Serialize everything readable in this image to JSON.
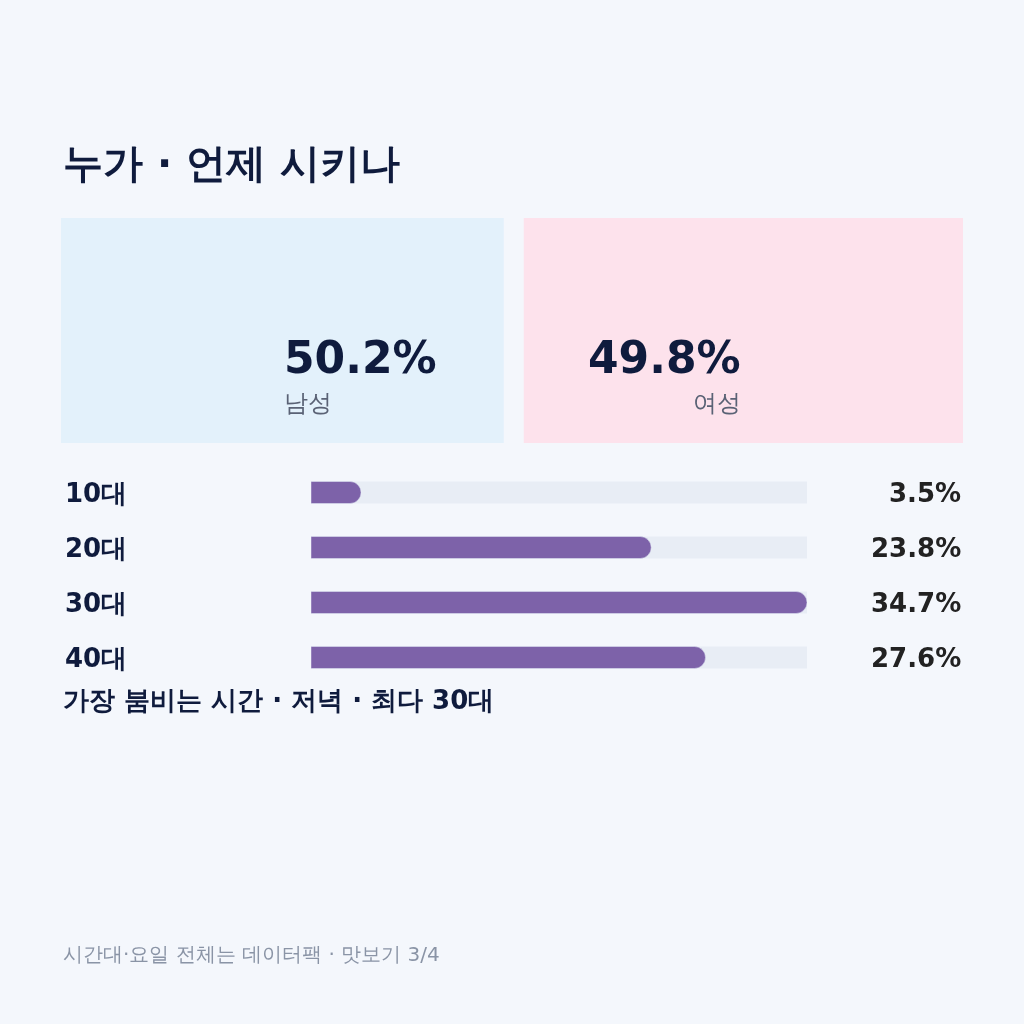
{
  "chart_data": [
    {
      "type": "other",
      "title": "누가 · 언제 시키나",
      "categories": [
        "남성",
        "여성"
      ],
      "values": [
        50.2,
        49.8
      ],
      "value_labels": [
        "50.2%",
        "49.8%"
      ],
      "colors": [
        "#e3f1fb",
        "#fde2ec"
      ]
    },
    {
      "type": "bar",
      "orientation": "horizontal",
      "categories": [
        "10대",
        "20대",
        "30대",
        "40대"
      ],
      "values": [
        3.5,
        23.8,
        34.7,
        27.6
      ],
      "value_labels": [
        "3.5%",
        "23.8%",
        "34.7%",
        "27.6%"
      ],
      "color": "#7d62a9",
      "xlim": [
        0,
        34.7
      ],
      "tick_labels": "y",
      "annotations": [
        "가장 붐비는 시간 · 저녁 · 최다 30대",
        "시간대·요일 전체는 데이터팩 · 맛보기 3/4"
      ]
    }
  ]
}
